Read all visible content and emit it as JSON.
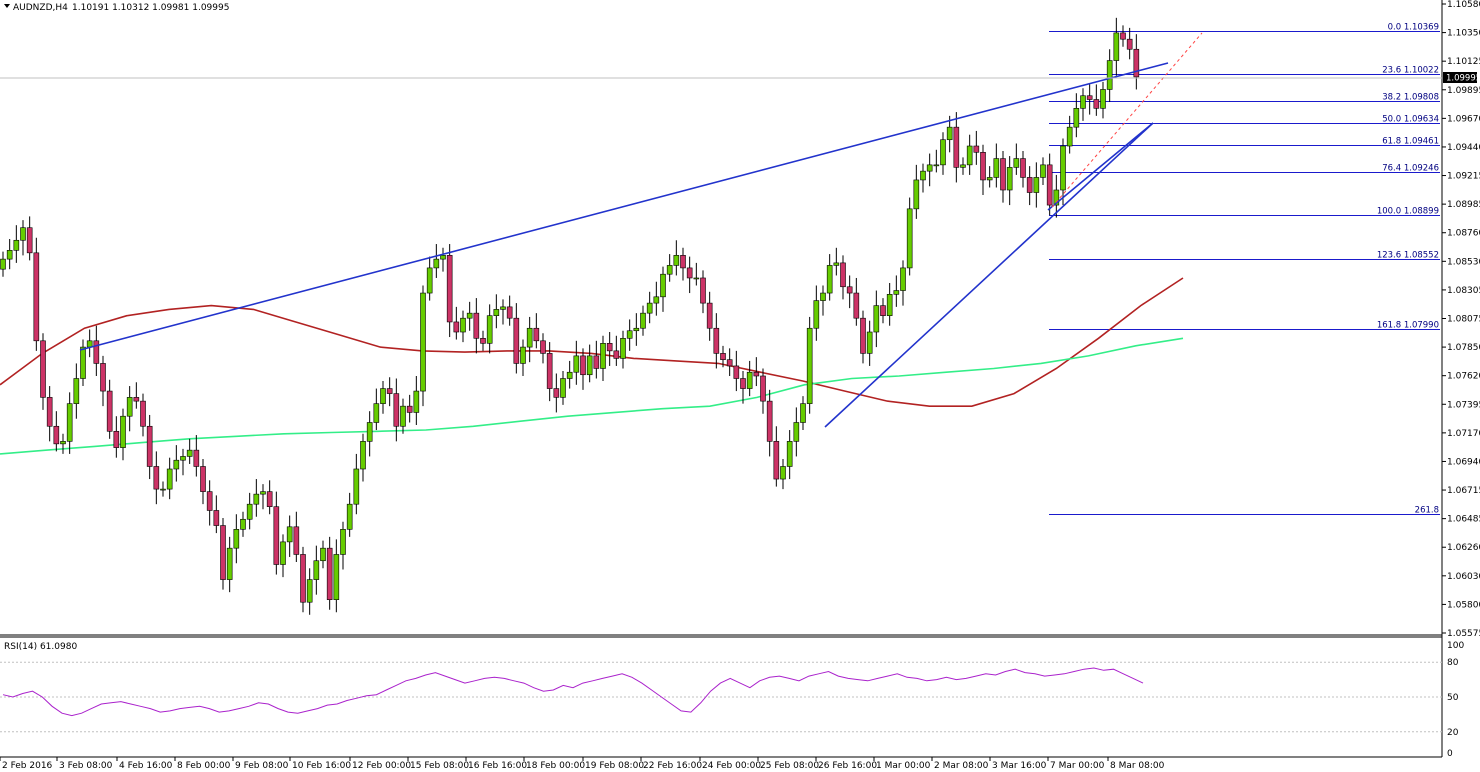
{
  "header": {
    "symbol": "AUDNZD,H4",
    "ohlc": "1.10191 1.10312 1.09981 1.09995"
  },
  "indicator": {
    "rsi_title": "RSI(14) 61.0980",
    "levels": [
      "100",
      "80",
      "50",
      "20",
      "0"
    ]
  },
  "current_price": "1.09995",
  "colors": {
    "bull": "#66cc00",
    "bear": "#cc3366",
    "trendline": "#2233cc",
    "fib": "#1a1acc",
    "ma_red": "#b22222",
    "ma_green": "#33ee88",
    "rsi": "#aa22cc",
    "projection": "#ff4444"
  },
  "chart_data": [
    {
      "type": "line",
      "title": "",
      "candles_close": [
        1.0855,
        1.0862,
        1.087,
        1.088,
        1.086,
        1.079,
        1.0745,
        1.0722,
        1.0708,
        1.071,
        1.074,
        1.076,
        1.0785,
        1.079,
        1.0772,
        1.075,
        1.0718,
        1.0705,
        1.073,
        1.0745,
        1.0742,
        1.0722,
        1.069,
        1.0672,
        1.0672,
        1.0688,
        1.0695,
        1.0698,
        1.0703,
        1.069,
        1.067,
        1.0655,
        1.0643,
        1.06,
        1.0625,
        1.064,
        1.0648,
        1.066,
        1.0668,
        1.067,
        1.0658,
        1.0612,
        1.063,
        1.0642,
        1.062,
        1.0582,
        1.06,
        1.0615,
        1.0625,
        1.0584,
        1.062,
        1.064,
        1.066,
        1.0688,
        1.071,
        1.0725,
        1.074,
        1.0752,
        1.0748,
        1.0722,
        1.0738,
        1.0733,
        1.075,
        1.0828,
        1.0848,
        1.0855,
        1.0858,
        1.0805,
        1.0797,
        1.0808,
        1.0812,
        1.0792,
        1.0788,
        1.081,
        1.0815,
        1.0817,
        1.0808,
        1.0772,
        1.0785,
        1.08,
        1.079,
        1.078,
        1.0752,
        1.0745,
        1.076,
        1.0765,
        1.0778,
        1.0763,
        1.0778,
        1.0768,
        1.0788,
        1.0782,
        1.0776,
        1.0792,
        1.0798,
        1.08,
        1.0812,
        1.082,
        1.0825,
        1.0843,
        1.085,
        1.0858,
        1.0848,
        1.084,
        1.084,
        1.082,
        1.08,
        1.078,
        1.0775,
        1.077,
        1.076,
        1.0752,
        1.0765,
        1.0762,
        1.0742,
        1.071,
        1.068,
        1.069,
        1.071,
        1.0725,
        1.074,
        1.08,
        1.0822,
        1.0828,
        1.085,
        1.0852,
        1.0833,
        1.0828,
        1.0808,
        1.078,
        1.0797,
        1.0818,
        1.081,
        1.0827,
        1.083,
        1.0848,
        1.0895,
        1.0918,
        1.0925,
        1.093,
        1.093,
        1.095,
        1.096,
        1.0928,
        1.093,
        1.0945,
        1.094,
        1.0918,
        1.092,
        1.0935,
        1.091,
        1.0928,
        1.0935,
        1.092,
        1.0908,
        1.092,
        1.093,
        1.0898,
        1.091,
        1.0945,
        1.096,
        1.0975,
        1.0985,
        1.0982,
        1.0975,
        1.099,
        1.1013,
        1.1035,
        1.103,
        1.1022,
        1.1
      ],
      "ylim": [
        1.05575,
        1.1058
      ],
      "y_ticks": [
        "1.10580",
        "1.10350",
        "1.10125",
        "1.09895",
        "1.09670",
        "1.09440",
        "1.09215",
        "1.08985",
        "1.08760",
        "1.08530",
        "1.08305",
        "1.08075",
        "1.07850",
        "1.07620",
        "1.07395",
        "1.07170",
        "1.06940",
        "1.06715",
        "1.06485",
        "1.06260",
        "1.06030",
        "1.05800",
        "1.05575"
      ],
      "x_ticks": [
        "2 Feb 2016",
        "3 Feb 08:00",
        "4 Feb 16:00",
        "8 Feb 00:00",
        "9 Feb 08:00",
        "10 Feb 16:00",
        "12 Feb 00:00",
        "15 Feb 08:00",
        "16 Feb 16:00",
        "18 Feb 00:00",
        "19 Feb 08:00",
        "22 Feb 16:00",
        "24 Feb 00:00",
        "25 Feb 08:00",
        "26 Feb 16:00",
        "1 Mar 00:00",
        "2 Mar 08:00",
        "3 Mar 16:00",
        "7 Mar 00:00",
        "8 Mar 08:00"
      ],
      "fibonacci": [
        {
          "level": "0.0",
          "price": "1.10369"
        },
        {
          "level": "23.6",
          "price": "1.10022"
        },
        {
          "level": "38.2",
          "price": "1.09808"
        },
        {
          "level": "50.0",
          "price": "1.09634"
        },
        {
          "level": "61.8",
          "price": "1.09461"
        },
        {
          "level": "76.4",
          "price": "1.09246"
        },
        {
          "level": "100.0",
          "price": "1.08899"
        },
        {
          "level": "123.6",
          "price": "1.08552"
        },
        {
          "level": "161.8",
          "price": "1.07990"
        },
        {
          "level": "261.8",
          "price": ""
        }
      ],
      "fib_levels_price": [
        1.10369,
        1.10022,
        1.09808,
        1.09634,
        1.09461,
        1.09246,
        1.08899,
        1.08552,
        1.0799,
        1.0652
      ],
      "ma_red": [
        1.0755,
        1.078,
        1.08,
        1.081,
        1.0815,
        1.0818,
        1.0815,
        1.0805,
        1.0795,
        1.0785,
        1.0782,
        1.0781,
        1.0782,
        1.0782,
        1.078,
        1.0776,
        1.0774,
        1.0772,
        1.0765,
        1.0758,
        1.075,
        1.0742,
        1.0738,
        1.0738,
        1.0748,
        1.0768,
        1.0792,
        1.0818,
        1.084
      ],
      "ma_green": [
        1.07,
        1.0703,
        1.0706,
        1.0709,
        1.0712,
        1.0714,
        1.0716,
        1.0717,
        1.0718,
        1.0719,
        1.0722,
        1.0726,
        1.073,
        1.0733,
        1.0736,
        1.0738,
        1.0745,
        1.0755,
        1.076,
        1.0762,
        1.0765,
        1.0768,
        1.0772,
        1.0778,
        1.0786,
        1.0792
      ],
      "rsi_values": [
        52,
        50,
        53,
        55,
        50,
        42,
        36,
        34,
        36,
        40,
        44,
        45,
        46,
        44,
        42,
        40,
        37,
        38,
        40,
        41,
        42,
        40,
        37,
        38,
        40,
        42,
        45,
        44,
        40,
        37,
        36,
        38,
        40,
        43,
        44,
        47,
        49,
        51,
        52,
        56,
        60,
        64,
        66,
        69,
        71,
        68,
        65,
        62,
        64,
        66,
        67,
        66,
        64,
        62,
        58,
        55,
        56,
        60,
        58,
        62,
        64,
        66,
        68,
        70,
        67,
        62,
        56,
        50,
        44,
        38,
        37,
        45,
        55,
        62,
        66,
        62,
        58,
        64,
        67,
        68,
        66,
        64,
        68,
        70,
        72,
        68,
        66,
        65,
        64,
        66,
        68,
        70,
        67,
        66,
        64,
        65,
        67,
        65,
        66,
        68,
        70,
        69,
        72,
        74,
        71,
        70,
        68,
        69,
        70,
        72,
        74,
        75,
        73,
        74,
        70,
        66,
        62
      ]
    }
  ]
}
